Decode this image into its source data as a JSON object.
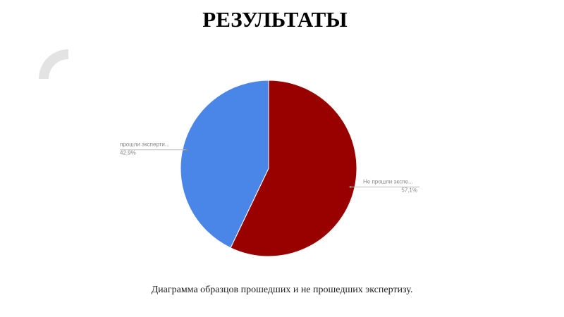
{
  "chart_data": {
    "type": "pie",
    "title": "РЕЗУЛЬТАТЫ",
    "caption": "Диаграмма образцов прошедших и не прошедших экспертизу.",
    "categories": [
      "Не прошли экспе...",
      "прошли эксперти..."
    ],
    "values": [
      57.1,
      42.9
    ],
    "value_labels": [
      "57,1%",
      "42,9%"
    ],
    "colors": [
      "#990000",
      "#4a86e8"
    ]
  }
}
